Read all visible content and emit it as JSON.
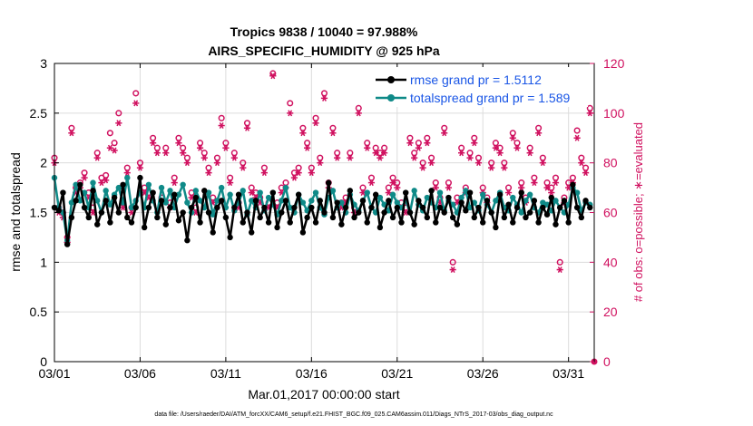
{
  "chart_data": {
    "type": "line",
    "title_line1": "Tropics 9838 / 10040 = 97.988%",
    "title_line2": "AIRS_SPECIFIC_HUMIDITY @ 925 hPa",
    "xlabel": "Mar.01,2017 00:00:00 start",
    "ylabel": "rmse and totalspread",
    "y2label": "# of obs: o=possible; ∗=evaluated",
    "footnote": "data file: /Users/raeder/DAI/ATM_forcXX/CAM6_setup/f.e21.FHIST_BGC.f09_025.CAM6assim.011/Diags_NTrS_2017-03/obs_diag_output.nc",
    "xlim": [
      0,
      31.5
    ],
    "ylim": [
      0,
      3
    ],
    "y2lim": [
      0,
      120
    ],
    "xtick_values": [
      0,
      5,
      10,
      15,
      20,
      25,
      30
    ],
    "xtick_labels": [
      "03/01",
      "03/06",
      "03/11",
      "03/16",
      "03/21",
      "03/26",
      "03/31"
    ],
    "ytick_values": [
      0,
      0.5,
      1,
      1.5,
      2,
      2.5,
      3
    ],
    "ytick_labels": [
      "0",
      "0.5",
      "1",
      "1.5",
      "2",
      "2.5",
      "3"
    ],
    "y2tick_values": [
      0,
      20,
      40,
      60,
      80,
      100,
      120
    ],
    "y2tick_labels": [
      "0",
      "20",
      "40",
      "60",
      "80",
      "100",
      "120"
    ],
    "colors": {
      "rmse": "#000000",
      "spread": "#0f8a88",
      "obs": "#d0105f",
      "legend_text": "#1a56e6",
      "grid": "#dcdcdc"
    },
    "series": [
      {
        "name": "rmse grand pr = 1.5112",
        "axis": "left",
        "x": [
          0.0,
          0.25,
          0.5,
          0.75,
          1.0,
          1.25,
          1.5,
          1.75,
          2.0,
          2.25,
          2.5,
          2.75,
          3.0,
          3.25,
          3.5,
          3.75,
          4.0,
          4.25,
          4.5,
          4.75,
          5.0,
          5.25,
          5.5,
          5.75,
          6.0,
          6.25,
          6.5,
          6.75,
          7.0,
          7.25,
          7.5,
          7.75,
          8.0,
          8.25,
          8.5,
          8.75,
          9.0,
          9.25,
          9.5,
          9.75,
          10.0,
          10.25,
          10.5,
          10.75,
          11.0,
          11.25,
          11.5,
          11.75,
          12.0,
          12.25,
          12.5,
          12.75,
          13.0,
          13.25,
          13.5,
          13.75,
          14.0,
          14.25,
          14.5,
          14.75,
          15.0,
          15.25,
          15.5,
          15.75,
          16.0,
          16.25,
          16.5,
          16.75,
          17.0,
          17.25,
          17.5,
          17.75,
          18.0,
          18.25,
          18.5,
          18.75,
          19.0,
          19.25,
          19.5,
          19.75,
          20.0,
          20.25,
          20.5,
          20.75,
          21.0,
          21.25,
          21.5,
          21.75,
          22.0,
          22.25,
          22.5,
          22.75,
          23.0,
          23.25,
          23.5,
          23.75,
          24.0,
          24.25,
          24.5,
          24.75,
          25.0,
          25.25,
          25.5,
          25.75,
          26.0,
          26.25,
          26.5,
          26.75,
          27.0,
          27.25,
          27.5,
          27.75,
          28.0,
          28.25,
          28.5,
          28.75,
          29.0,
          29.25,
          29.5,
          29.75,
          30.0,
          30.25,
          30.5,
          30.75,
          31.0,
          31.25
        ],
        "values": [
          1.55,
          1.52,
          1.7,
          1.18,
          1.45,
          1.62,
          1.78,
          1.55,
          1.45,
          1.72,
          1.38,
          1.5,
          1.62,
          1.4,
          1.65,
          1.5,
          1.78,
          1.45,
          1.4,
          1.55,
          1.85,
          1.35,
          1.55,
          1.7,
          1.45,
          1.62,
          1.38,
          1.55,
          1.68,
          1.42,
          1.5,
          1.22,
          1.55,
          1.65,
          1.4,
          1.72,
          1.5,
          1.3,
          1.55,
          1.62,
          1.45,
          1.25,
          1.55,
          1.68,
          1.4,
          1.5,
          1.3,
          1.62,
          1.45,
          1.55,
          1.4,
          1.7,
          1.35,
          1.5,
          1.62,
          1.4,
          1.55,
          1.68,
          1.3,
          1.45,
          1.55,
          1.4,
          1.62,
          1.5,
          1.8,
          1.45,
          1.6,
          1.38,
          1.55,
          1.72,
          1.45,
          1.5,
          1.62,
          1.4,
          1.55,
          1.68,
          1.35,
          1.5,
          1.62,
          1.45,
          1.55,
          1.4,
          1.7,
          1.5,
          1.38,
          1.62,
          1.55,
          1.45,
          1.72,
          1.4,
          1.55,
          1.5,
          1.65,
          1.45,
          1.38,
          1.6,
          1.52,
          1.7,
          1.45,
          1.55,
          1.4,
          1.62,
          1.5,
          1.35,
          1.68,
          1.45,
          1.58,
          1.4,
          1.55,
          1.7,
          1.45,
          1.5,
          1.62,
          1.4,
          1.55,
          1.48,
          1.65,
          1.38,
          1.55,
          1.62,
          1.4,
          1.78,
          1.55,
          1.45,
          1.62,
          1.55
        ]
      },
      {
        "name": "totalspread grand pr = 1.589",
        "axis": "left",
        "x": [
          0.0,
          0.25,
          0.5,
          0.75,
          1.0,
          1.25,
          1.5,
          1.75,
          2.0,
          2.25,
          2.5,
          2.75,
          3.0,
          3.25,
          3.5,
          3.75,
          4.0,
          4.25,
          4.5,
          4.75,
          5.0,
          5.25,
          5.5,
          5.75,
          6.0,
          6.25,
          6.5,
          6.75,
          7.0,
          7.25,
          7.5,
          7.75,
          8.0,
          8.25,
          8.5,
          8.75,
          9.0,
          9.25,
          9.5,
          9.75,
          10.0,
          10.25,
          10.5,
          10.75,
          11.0,
          11.25,
          11.5,
          11.75,
          12.0,
          12.25,
          12.5,
          12.75,
          13.0,
          13.25,
          13.5,
          13.75,
          14.0,
          14.25,
          14.5,
          14.75,
          15.0,
          15.25,
          15.5,
          15.75,
          16.0,
          16.25,
          16.5,
          16.75,
          17.0,
          17.25,
          17.5,
          17.75,
          18.0,
          18.25,
          18.5,
          18.75,
          19.0,
          19.25,
          19.5,
          19.75,
          20.0,
          20.25,
          20.5,
          20.75,
          21.0,
          21.25,
          21.5,
          21.75,
          22.0,
          22.25,
          22.5,
          22.75,
          23.0,
          23.25,
          23.5,
          23.75,
          24.0,
          24.25,
          24.5,
          24.75,
          25.0,
          25.25,
          25.5,
          25.75,
          26.0,
          26.25,
          26.5,
          26.75,
          27.0,
          27.25,
          27.5,
          27.75,
          28.0,
          28.25,
          28.5,
          28.75,
          29.0,
          29.25,
          29.5,
          29.75,
          30.0,
          30.25,
          30.5,
          30.75,
          31.0,
          31.25
        ],
        "values": [
          1.85,
          1.55,
          1.5,
          1.22,
          1.6,
          1.78,
          1.62,
          1.7,
          1.55,
          1.8,
          1.62,
          1.5,
          1.72,
          1.58,
          1.68,
          1.75,
          1.6,
          1.85,
          1.55,
          1.62,
          1.7,
          1.55,
          1.78,
          1.62,
          1.5,
          1.75,
          1.6,
          1.72,
          1.55,
          1.68,
          1.78,
          1.6,
          1.5,
          1.72,
          1.62,
          1.55,
          1.7,
          1.48,
          1.62,
          1.75,
          1.55,
          1.68,
          1.52,
          1.6,
          1.72,
          1.48,
          1.62,
          1.55,
          1.7,
          1.52,
          1.65,
          1.58,
          1.48,
          1.62,
          1.75,
          1.55,
          1.5,
          1.68,
          1.6,
          1.52,
          1.62,
          1.7,
          1.55,
          1.48,
          1.65,
          1.72,
          1.55,
          1.6,
          1.5,
          1.68,
          1.58,
          1.52,
          1.62,
          1.7,
          1.55,
          1.5,
          1.65,
          1.58,
          1.52,
          1.68,
          1.6,
          1.55,
          1.62,
          1.5,
          1.72,
          1.58,
          1.52,
          1.65,
          1.6,
          1.55,
          1.7,
          1.52,
          1.62,
          1.58,
          1.5,
          1.65,
          1.72,
          1.55,
          1.6,
          1.52,
          1.68,
          1.58,
          1.5,
          1.62,
          1.7,
          1.55,
          1.52,
          1.65,
          1.58,
          1.5,
          1.62,
          1.68,
          1.55,
          1.5,
          1.6,
          1.58,
          1.52,
          1.62,
          1.55,
          1.5,
          1.58,
          1.75,
          1.7,
          1.52,
          1.6,
          1.58
        ]
      },
      {
        "name": "obs possible",
        "axis": "right",
        "marker": "o",
        "x": [
          0.0,
          0.25,
          0.5,
          0.75,
          1.0,
          1.25,
          1.5,
          1.75,
          2.0,
          2.25,
          2.5,
          2.75,
          3.0,
          3.25,
          3.5,
          3.75,
          4.0,
          4.25,
          4.5,
          4.75,
          5.0,
          5.25,
          5.5,
          5.75,
          6.0,
          6.25,
          6.5,
          6.75,
          7.0,
          7.25,
          7.5,
          7.75,
          8.0,
          8.25,
          8.5,
          8.75,
          9.0,
          9.25,
          9.5,
          9.75,
          10.0,
          10.25,
          10.5,
          10.75,
          11.0,
          11.25,
          11.5,
          11.75,
          12.0,
          12.25,
          12.5,
          12.75,
          13.0,
          13.25,
          13.5,
          13.75,
          14.0,
          14.25,
          14.5,
          14.75,
          15.0,
          15.25,
          15.5,
          15.75,
          16.0,
          16.25,
          16.5,
          16.75,
          17.0,
          17.25,
          17.5,
          17.75,
          18.0,
          18.25,
          18.5,
          18.75,
          19.0,
          19.25,
          19.5,
          19.75,
          20.0,
          20.25,
          20.5,
          20.75,
          21.0,
          21.25,
          21.5,
          21.75,
          22.0,
          22.25,
          22.5,
          22.75,
          23.0,
          23.25,
          23.5,
          23.75,
          24.0,
          24.25,
          24.5,
          24.75,
          25.0,
          25.25,
          25.5,
          25.75,
          26.0,
          26.25,
          26.5,
          26.75,
          27.0,
          27.25,
          27.5,
          27.75,
          28.0,
          28.25,
          28.5,
          28.75,
          29.0,
          29.25,
          29.5,
          29.75,
          30.0,
          30.25,
          30.5,
          30.75,
          31.0,
          31.25
        ],
        "values": [
          82,
          62,
          60,
          50,
          94,
          70,
          72,
          76,
          68,
          62,
          84,
          74,
          75,
          92,
          88,
          100,
          64,
          78,
          62,
          108,
          80,
          70,
          68,
          90,
          86,
          66,
          86,
          64,
          74,
          90,
          86,
          82,
          68,
          62,
          88,
          84,
          78,
          66,
          82,
          98,
          88,
          74,
          84,
          64,
          80,
          96,
          70,
          68,
          66,
          78,
          64,
          116,
          64,
          70,
          72,
          104,
          76,
          78,
          94,
          88,
          78,
          98,
          82,
          108,
          72,
          94,
          84,
          64,
          66,
          84,
          62,
          102,
          70,
          88,
          74,
          86,
          84,
          86,
          70,
          74,
          72,
          64,
          62,
          90,
          84,
          88,
          80,
          90,
          82,
          72,
          66,
          94,
          72,
          40,
          66,
          86,
          70,
          84,
          90,
          82,
          70,
          66,
          80,
          88,
          86,
          80,
          70,
          92,
          88,
          72,
          66,
          86,
          74,
          94,
          82,
          72,
          70,
          74,
          40,
          66,
          72,
          74,
          93,
          82,
          78,
          102
        ]
      },
      {
        "name": "obs evaluated",
        "axis": "right",
        "marker": "*",
        "x": [
          0.0,
          0.25,
          0.5,
          0.75,
          1.0,
          1.25,
          1.5,
          1.75,
          2.0,
          2.25,
          2.5,
          2.75,
          3.0,
          3.25,
          3.5,
          3.75,
          4.0,
          4.25,
          4.5,
          4.75,
          5.0,
          5.25,
          5.5,
          5.75,
          6.0,
          6.25,
          6.5,
          6.75,
          7.0,
          7.25,
          7.5,
          7.75,
          8.0,
          8.25,
          8.5,
          8.75,
          9.0,
          9.25,
          9.5,
          9.75,
          10.0,
          10.25,
          10.5,
          10.75,
          11.0,
          11.25,
          11.5,
          11.75,
          12.0,
          12.25,
          12.5,
          12.75,
          13.0,
          13.25,
          13.5,
          13.75,
          14.0,
          14.25,
          14.5,
          14.75,
          15.0,
          15.25,
          15.5,
          15.75,
          16.0,
          16.25,
          16.5,
          16.75,
          17.0,
          17.25,
          17.5,
          17.75,
          18.0,
          18.25,
          18.5,
          18.75,
          19.0,
          19.25,
          19.5,
          19.75,
          20.0,
          20.25,
          20.5,
          20.75,
          21.0,
          21.25,
          21.5,
          21.75,
          22.0,
          22.25,
          22.5,
          22.75,
          23.0,
          23.25,
          23.5,
          23.75,
          24.0,
          24.25,
          24.5,
          24.75,
          25.0,
          25.25,
          25.5,
          25.75,
          26.0,
          26.25,
          26.5,
          26.75,
          27.0,
          27.25,
          27.5,
          27.75,
          28.0,
          28.25,
          28.5,
          28.75,
          29.0,
          29.25,
          29.5,
          29.75,
          30.0,
          30.25,
          30.5,
          30.75,
          31.0,
          31.25
        ],
        "values": [
          80,
          60,
          58,
          48,
          92,
          68,
          70,
          74,
          66,
          60,
          82,
          72,
          73,
          86,
          85,
          96,
          62,
          76,
          60,
          104,
          78,
          68,
          66,
          88,
          84,
          64,
          84,
          62,
          72,
          88,
          84,
          80,
          66,
          60,
          86,
          82,
          76,
          64,
          80,
          95,
          86,
          72,
          82,
          62,
          78,
          94,
          68,
          66,
          64,
          76,
          62,
          115,
          62,
          68,
          70,
          100,
          74,
          76,
          92,
          86,
          76,
          96,
          80,
          106,
          70,
          92,
          82,
          62,
          64,
          82,
          60,
          100,
          68,
          86,
          72,
          84,
          82,
          84,
          68,
          72,
          70,
          62,
          60,
          88,
          82,
          86,
          78,
          88,
          80,
          70,
          64,
          92,
          70,
          37,
          64,
          84,
          68,
          82,
          88,
          80,
          68,
          64,
          78,
          86,
          84,
          78,
          68,
          90,
          86,
          70,
          64,
          84,
          72,
          92,
          80,
          70,
          68,
          72,
          37,
          64,
          70,
          72,
          90,
          80,
          76,
          100
        ]
      }
    ],
    "end_marker": {
      "x": 31.5,
      "value": 0,
      "axis": "right"
    },
    "legend": {
      "position": "top-right",
      "entries": [
        "rmse grand pr = 1.5112",
        "totalspread grand pr = 1.589"
      ]
    }
  }
}
